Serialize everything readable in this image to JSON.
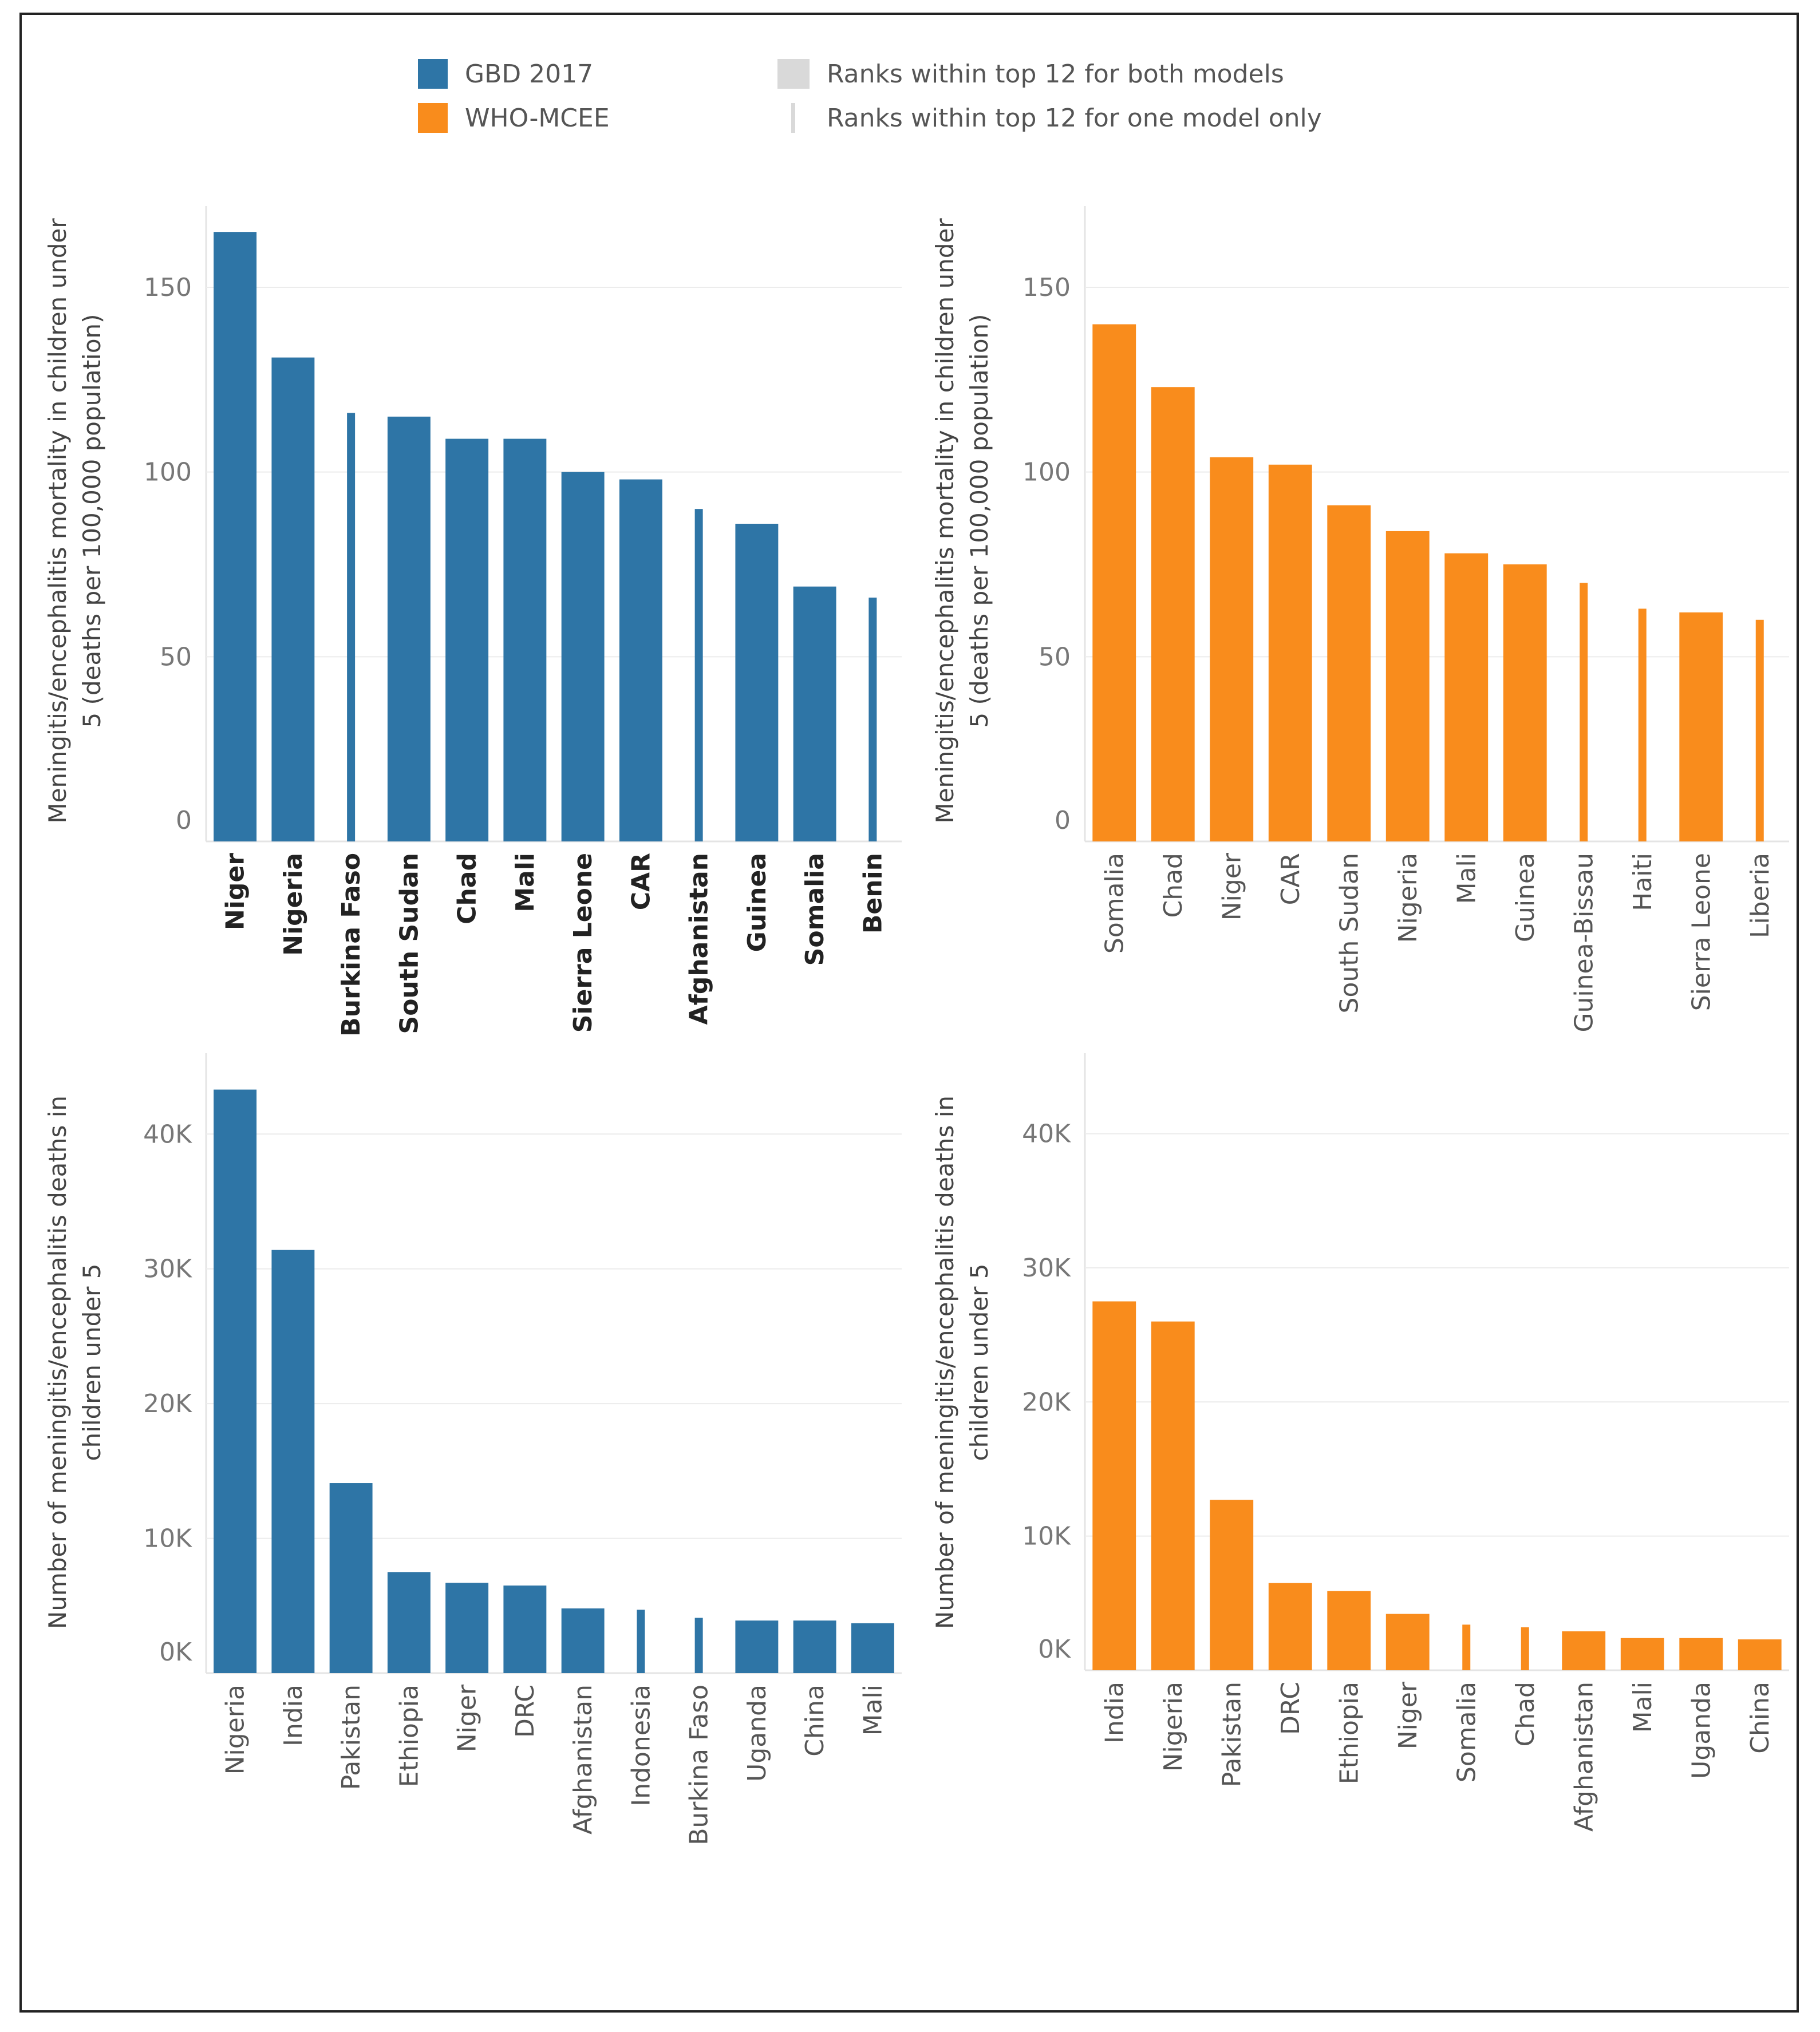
{
  "legend": {
    "gbd_label": "GBD 2017",
    "who_label": "WHO-MCEE",
    "both_label": "Ranks within top 12 for both models",
    "one_label": "Ranks within top 12 for one model only",
    "gbd_color": "#2e75a6",
    "who_color": "#f98c1c"
  },
  "chart_data": [
    {
      "type": "bar",
      "model": "GBD 2017",
      "ylabel_lines": [
        "Meningitis/encephalitis mortality in children under",
        "5 (deaths per 100,000 population)"
      ],
      "ylim": [
        0,
        172
      ],
      "ticks": [
        0,
        50,
        100,
        150
      ],
      "tick_labels": [
        "0",
        "50",
        "100",
        "150"
      ],
      "categories": [
        "Niger",
        "Nigeria",
        "Burkina Faso",
        "South Sudan",
        "Chad",
        "Mali",
        "Sierra Leone",
        "CAR",
        "Afghanistan",
        "Guinea",
        "Somalia",
        "Benin"
      ],
      "values": [
        165,
        131,
        116,
        115,
        109,
        109,
        100,
        98,
        90,
        86,
        69,
        66
      ],
      "both_models": [
        true,
        true,
        false,
        true,
        true,
        true,
        true,
        true,
        false,
        true,
        true,
        false
      ],
      "bold_labels": true
    },
    {
      "type": "bar",
      "model": "WHO-MCEE",
      "ylabel_lines": [
        "Meningitis/encephalitis mortality in children under",
        "5 (deaths per 100,000 population)"
      ],
      "ylim": [
        0,
        172
      ],
      "ticks": [
        0,
        50,
        100,
        150
      ],
      "tick_labels": [
        "0",
        "50",
        "100",
        "150"
      ],
      "categories": [
        "Somalia",
        "Chad",
        "Niger",
        "CAR",
        "South Sudan",
        "Nigeria",
        "Mali",
        "Guinea",
        "Guinea-Bissau",
        "Haiti",
        "Sierra Leone",
        "Liberia"
      ],
      "values": [
        140,
        123,
        104,
        102,
        91,
        84,
        78,
        75,
        70,
        63,
        62,
        60
      ],
      "both_models": [
        true,
        true,
        true,
        true,
        true,
        true,
        true,
        true,
        false,
        false,
        true,
        false
      ],
      "bold_labels": false
    },
    {
      "type": "bar",
      "model": "GBD 2017",
      "ylabel_lines": [
        "Number of meningitis/encephalitis deaths in",
        "children under 5"
      ],
      "ylim": [
        0,
        46000
      ],
      "ticks": [
        0,
        10000,
        20000,
        30000,
        40000
      ],
      "tick_labels": [
        "0K",
        "10K",
        "20K",
        "30K",
        "40K"
      ],
      "categories": [
        "Nigeria",
        "India",
        "Pakistan",
        "Ethiopia",
        "Niger",
        "DRC",
        "Afghanistan",
        "Indonesia",
        "Burkina Faso",
        "Uganda",
        "China",
        "Mali"
      ],
      "values": [
        43300,
        31400,
        14100,
        7500,
        6700,
        6500,
        4800,
        4700,
        4100,
        3900,
        3900,
        3700
      ],
      "both_models": [
        true,
        true,
        true,
        true,
        true,
        true,
        true,
        false,
        false,
        true,
        true,
        true
      ],
      "bold_labels": false
    },
    {
      "type": "bar",
      "model": "WHO-MCEE",
      "ylabel_lines": [
        "Number of meningitis/encephalitis deaths in",
        "children under 5"
      ],
      "ylim": [
        0,
        46000
      ],
      "ticks": [
        0,
        10000,
        20000,
        30000,
        40000
      ],
      "tick_labels": [
        "0K",
        "10K",
        "20K",
        "30K",
        "40K"
      ],
      "categories": [
        "India",
        "Nigeria",
        "Pakistan",
        "DRC",
        "Ethiopia",
        "Niger",
        "Somalia",
        "Chad",
        "Afghanistan",
        "Mali",
        "Uganda",
        "China"
      ],
      "values": [
        27500,
        26000,
        12700,
        6500,
        5900,
        4200,
        3400,
        3200,
        2900,
        2400,
        2400,
        2300
      ],
      "both_models": [
        true,
        true,
        true,
        true,
        true,
        true,
        false,
        false,
        true,
        true,
        true,
        true
      ],
      "bold_labels": false
    }
  ]
}
